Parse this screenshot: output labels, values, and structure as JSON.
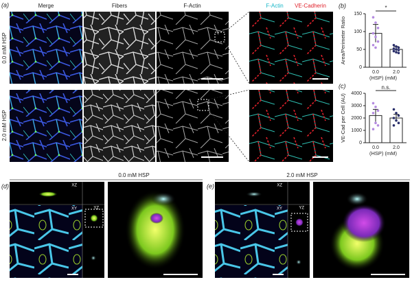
{
  "figure": {
    "panel_labels": [
      "(a)",
      "(b)",
      "(c)",
      "(d)",
      "(e)"
    ],
    "headers": [
      "Merge",
      "Fibers",
      "F-Actin"
    ],
    "stain_labels": [
      "F-Actin",
      "VE-Cadherin"
    ],
    "row_labels": [
      "0.0 mM HSP",
      "2.0 mM HSP"
    ],
    "section_titles": [
      "0.0 mM HSP",
      "2.0 mM HSP"
    ],
    "view_labels": [
      "XZ",
      "XY",
      "YZ",
      "XZ",
      "XY",
      "YZ"
    ]
  },
  "chart_data": [
    {
      "type": "bar",
      "ylabel": "Area/Perimeter Ratio",
      "xlabel": "(HSP) (mM)",
      "categories": [
        "0.0",
        "2.0"
      ],
      "values": [
        95,
        50
      ],
      "errors": [
        25,
        8
      ],
      "color": "#ffffff",
      "points": [
        [
          140,
          125,
          110,
          95,
          85,
          72,
          62,
          55
        ],
        [
          62,
          58,
          55,
          52,
          50,
          48,
          45,
          42,
          40
        ]
      ],
      "point_colors": [
        "#b58be0",
        "#2a2f6b"
      ],
      "ylim": [
        0,
        150
      ],
      "yticks": [
        0,
        50,
        100,
        150
      ],
      "annotation": "*"
    },
    {
      "type": "bar",
      "ylabel": "VE-Cad per Cell (AU)",
      "xlabel": "(HSP) (mM)",
      "categories": [
        "0.0",
        "2.0"
      ],
      "values": [
        2200,
        2000
      ],
      "errors": [
        500,
        300
      ],
      "color": "#ffffff",
      "points": [
        [
          3200,
          2900,
          2600,
          2400,
          1600,
          1400,
          1100
        ],
        [
          2700,
          2400,
          2200,
          2000,
          1800,
          1600,
          1400
        ]
      ],
      "point_colors": [
        "#b58be0",
        "#2a2f6b"
      ],
      "ylim": [
        0,
        4000
      ],
      "yticks": [
        0,
        1000,
        2000,
        3000,
        4000
      ],
      "annotation": "n.s."
    }
  ]
}
